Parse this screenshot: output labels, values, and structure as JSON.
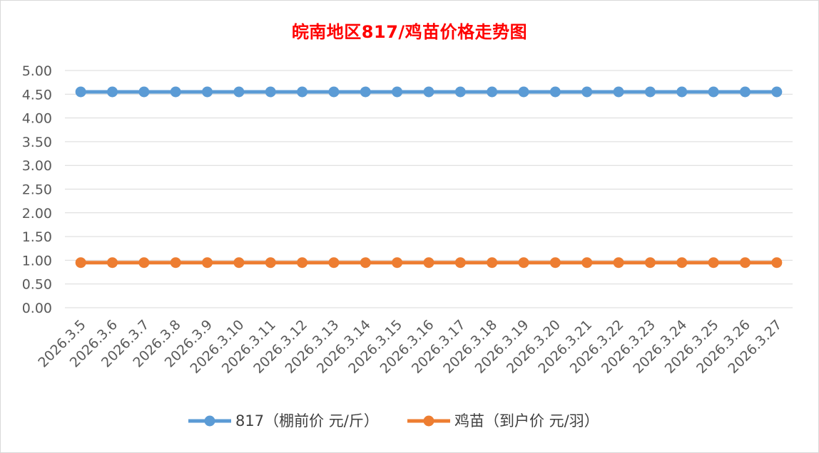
{
  "chart_data": {
    "type": "line",
    "title": "皖南地区817/鸡苗价格走势图",
    "x": [
      "2026.3.5",
      "2026.3.6",
      "2026.3.7",
      "2026.3.8",
      "2026.3.9",
      "2026.3.10",
      "2026.3.11",
      "2026.3.12",
      "2026.3.13",
      "2026.3.14",
      "2026.3.15",
      "2026.3.16",
      "2026.3.17",
      "2026.3.18",
      "2026.3.19",
      "2026.3.20",
      "2026.3.21",
      "2026.3.22",
      "2026.3.23",
      "2026.3.24",
      "2026.3.25",
      "2026.3.26",
      "2026.3.27"
    ],
    "series": [
      {
        "name": "817（棚前价 元/斤）",
        "color": "#5b9bd5",
        "values": [
          4.55,
          4.55,
          4.55,
          4.55,
          4.55,
          4.55,
          4.55,
          4.55,
          4.55,
          4.55,
          4.55,
          4.55,
          4.55,
          4.55,
          4.55,
          4.55,
          4.55,
          4.55,
          4.55,
          4.55,
          4.55,
          4.55,
          4.55
        ]
      },
      {
        "name": "鸡苗（到户价 元/羽）",
        "color": "#ed7d31",
        "values": [
          0.95,
          0.95,
          0.95,
          0.95,
          0.95,
          0.95,
          0.95,
          0.95,
          0.95,
          0.95,
          0.95,
          0.95,
          0.95,
          0.95,
          0.95,
          0.95,
          0.95,
          0.95,
          0.95,
          0.95,
          0.95,
          0.95,
          0.95
        ]
      }
    ],
    "ylim": [
      0,
      5
    ],
    "yticks": [
      "0.00",
      "0.50",
      "1.00",
      "1.50",
      "2.00",
      "2.50",
      "3.00",
      "3.50",
      "4.00",
      "4.50",
      "5.00"
    ],
    "xlabel": "",
    "ylabel": "",
    "grid": true,
    "legend_position": "bottom"
  }
}
